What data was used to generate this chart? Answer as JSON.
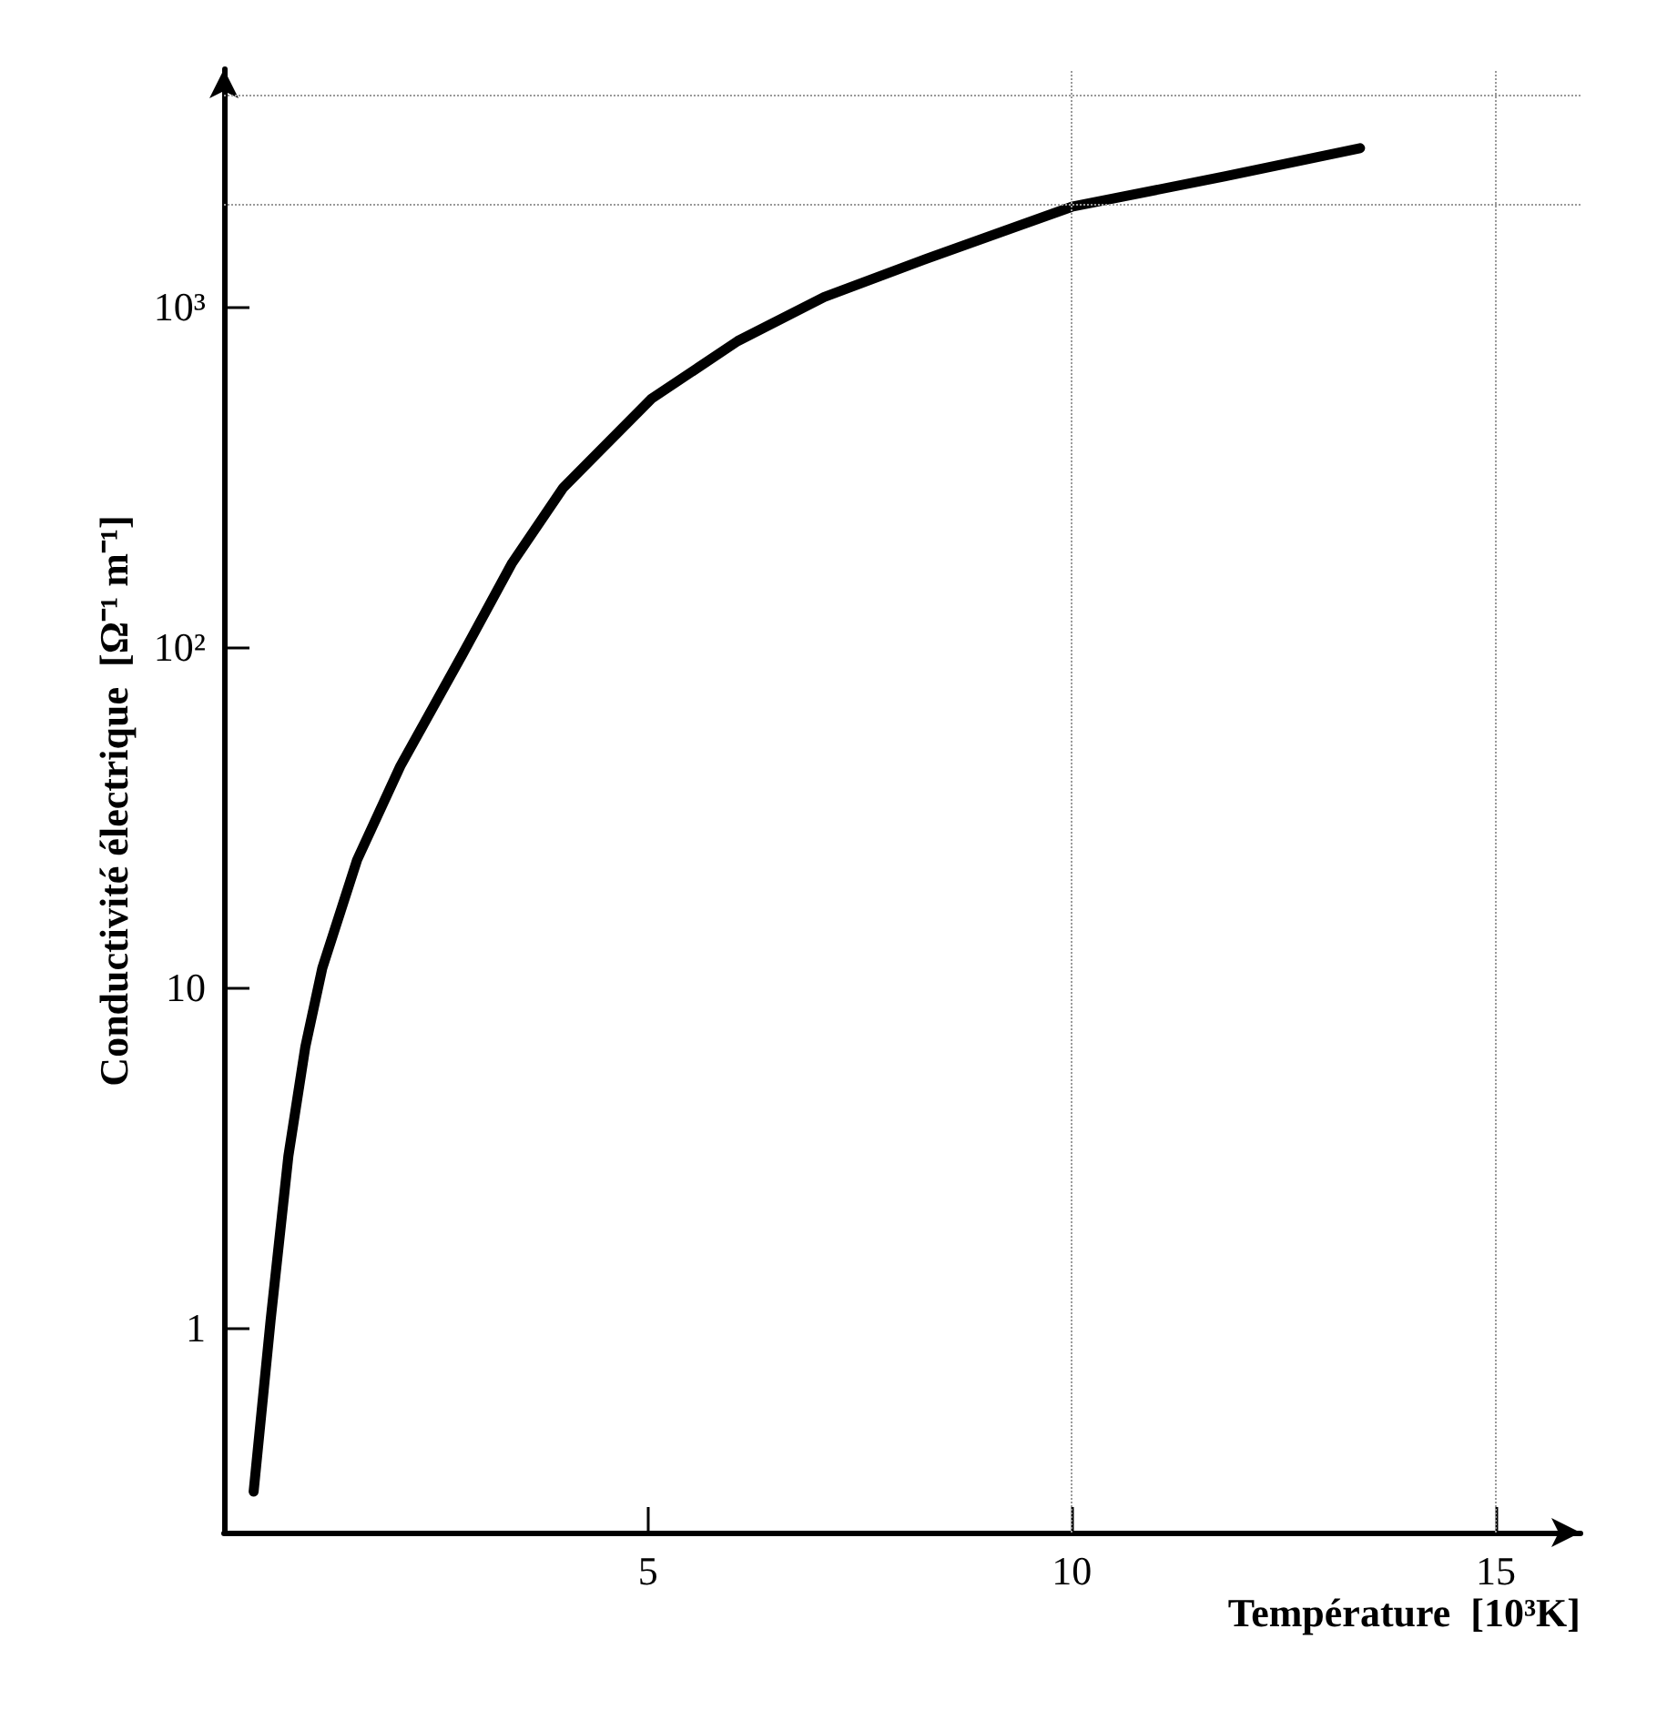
{
  "chart_data": {
    "type": "line",
    "xlabel": "Température  [10³K]",
    "ylabel": "Conductivité électrique  [Ω⁻¹ m⁻¹]",
    "x": [
      0.35,
      0.55,
      0.76,
      0.96,
      1.16,
      1.57,
      2.08,
      2.8,
      3.4,
      4.0,
      5.04,
      6.06,
      7.08,
      8.3,
      10,
      11.8,
      13.4
    ],
    "series": [
      {
        "color": "#000000",
        "values": [
          0.33,
          1.05,
          3.2,
          6.7,
          11.4,
          23.7,
          44.7,
          94,
          177,
          294,
          537,
          794,
          1070,
          1390,
          1970,
          2420,
          2930
        ]
      }
    ],
    "xlim": [
      0,
      16
    ],
    "xticks": [
      5,
      10,
      15
    ],
    "ylim": [
      0.25,
      5000
    ],
    "yticks": [
      1,
      10,
      {
        "value": 100,
        "label": "10²"
      },
      {
        "value": 1000,
        "label": "10³"
      }
    ],
    "log": "y",
    "grid": false,
    "marker": "none",
    "line_style": "solid",
    "ref_lines": [
      {
        "axis": "x",
        "value": 10,
        "label": null,
        "color": "#999999",
        "line_style": "dotted"
      },
      {
        "axis": "x",
        "value": 15,
        "label": null,
        "color": "#999999",
        "line_style": "dotted"
      },
      {
        "axis": "y",
        "value": 2000,
        "label": null,
        "color": "#999999",
        "line_style": "dotted"
      },
      {
        "axis": "y",
        "value": 4200,
        "label": null,
        "color": "#999999",
        "line_style": "dotted"
      }
    ]
  }
}
